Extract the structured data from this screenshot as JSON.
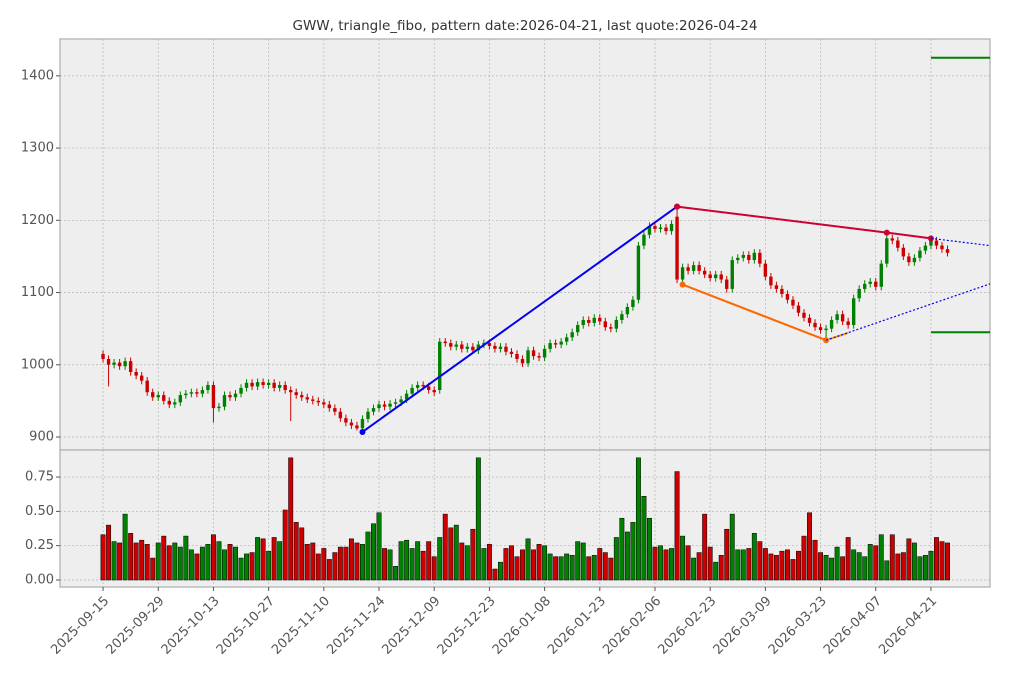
{
  "chart_data": {
    "type": "candlestick",
    "title": "GWW, triangle_fibo, pattern date:2026-04-21, last quote:2026-04-24",
    "categories": [
      "2025-09-15",
      null,
      null,
      null,
      null,
      null,
      null,
      null,
      null,
      null,
      "2025-09-29",
      null,
      null,
      null,
      null,
      null,
      null,
      null,
      null,
      null,
      "2025-10-13",
      null,
      null,
      null,
      null,
      null,
      null,
      null,
      null,
      null,
      "2025-10-27",
      null,
      null,
      null,
      null,
      null,
      null,
      null,
      null,
      null,
      "2025-11-10",
      null,
      null,
      null,
      null,
      null,
      null,
      null,
      null,
      null,
      "2025-11-24",
      null,
      null,
      null,
      null,
      null,
      null,
      null,
      null,
      null,
      "2025-12-09",
      null,
      null,
      null,
      null,
      null,
      null,
      null,
      null,
      null,
      "2025-12-23",
      null,
      null,
      null,
      null,
      null,
      null,
      null,
      null,
      null,
      "2026-01-08",
      null,
      null,
      null,
      null,
      null,
      null,
      null,
      null,
      null,
      "2026-01-23",
      null,
      null,
      null,
      null,
      null,
      null,
      null,
      null,
      null,
      "2026-02-06",
      null,
      null,
      null,
      null,
      null,
      null,
      null,
      null,
      null,
      "2026-02-23",
      null,
      null,
      null,
      null,
      null,
      null,
      null,
      null,
      null,
      "2026-03-09",
      null,
      null,
      null,
      null,
      null,
      null,
      null,
      null,
      null,
      "2026-03-23",
      null,
      null,
      null,
      null,
      null,
      null,
      null,
      null,
      null,
      "2026-04-07",
      null,
      null,
      null,
      null,
      null,
      null,
      null,
      null,
      null,
      "2026-04-21",
      null,
      null,
      null
    ],
    "open": [
      1015,
      1008,
      1000,
      1003,
      998,
      1005,
      990,
      985,
      978,
      962,
      955,
      958,
      950,
      945,
      948,
      958,
      960,
      962,
      960,
      965,
      972,
      940,
      942,
      958,
      955,
      960,
      968,
      975,
      970,
      976,
      972,
      975,
      968,
      972,
      965,
      962,
      958,
      955,
      952,
      950,
      948,
      945,
      940,
      935,
      926,
      920,
      916,
      912,
      925,
      935,
      940,
      945,
      942,
      946,
      948,
      952,
      960,
      968,
      972,
      970,
      965,
      965,
      1032,
      1030,
      1025,
      1028,
      1022,
      1025,
      1020,
      1028,
      1030,
      1026,
      1022,
      1025,
      1018,
      1015,
      1008,
      1002,
      1020,
      1012,
      1010,
      1022,
      1030,
      1028,
      1032,
      1038,
      1045,
      1055,
      1062,
      1058,
      1065,
      1060,
      1052,
      1050,
      1062,
      1070,
      1080,
      1090,
      1165,
      1180,
      1192,
      1188,
      1190,
      1185,
      1205,
      1118,
      1135,
      1130,
      1138,
      1130,
      1125,
      1120,
      1125,
      1118,
      1105,
      1145,
      1148,
      1152,
      1145,
      1155,
      1140,
      1122,
      1110,
      1105,
      1098,
      1090,
      1082,
      1072,
      1065,
      1058,
      1052,
      1048,
      1050,
      1062,
      1070,
      1060,
      1055,
      1092,
      1105,
      1112,
      1115,
      1108,
      1140,
      1175,
      1172,
      1162,
      1150,
      1142,
      1148,
      1158,
      1165,
      1172,
      1165,
      1160
    ],
    "high": [
      1020,
      1013,
      1008,
      1008,
      1010,
      1010,
      995,
      990,
      983,
      967,
      963,
      963,
      955,
      953,
      963,
      965,
      967,
      967,
      970,
      977,
      977,
      947,
      963,
      963,
      965,
      973,
      980,
      980,
      981,
      981,
      980,
      980,
      977,
      977,
      970,
      967,
      963,
      960,
      957,
      955,
      953,
      950,
      945,
      940,
      931,
      925,
      921,
      930,
      940,
      945,
      950,
      950,
      951,
      953,
      957,
      965,
      973,
      977,
      977,
      975,
      970,
      1037,
      1037,
      1035,
      1033,
      1033,
      1030,
      1030,
      1033,
      1035,
      1035,
      1031,
      1030,
      1030,
      1023,
      1020,
      1013,
      1025,
      1025,
      1017,
      1027,
      1035,
      1035,
      1037,
      1043,
      1050,
      1060,
      1067,
      1067,
      1070,
      1070,
      1065,
      1057,
      1067,
      1075,
      1085,
      1095,
      1170,
      1185,
      1197,
      1197,
      1195,
      1195,
      1200,
      1219,
      1140,
      1140,
      1143,
      1143,
      1135,
      1130,
      1130,
      1130,
      1123,
      1150,
      1153,
      1157,
      1157,
      1160,
      1160,
      1145,
      1127,
      1115,
      1110,
      1103,
      1095,
      1087,
      1077,
      1070,
      1063,
      1057,
      1055,
      1067,
      1075,
      1075,
      1065,
      1097,
      1110,
      1117,
      1120,
      1120,
      1145,
      1183,
      1180,
      1177,
      1167,
      1155,
      1153,
      1163,
      1170,
      1177,
      1177,
      1170,
      1165
    ],
    "low": [
      1003,
      970,
      995,
      993,
      993,
      985,
      980,
      973,
      957,
      950,
      950,
      945,
      940,
      940,
      943,
      953,
      955,
      955,
      955,
      960,
      920,
      935,
      937,
      950,
      950,
      955,
      963,
      965,
      965,
      967,
      967,
      963,
      963,
      960,
      922,
      953,
      950,
      947,
      945,
      943,
      940,
      935,
      930,
      921,
      915,
      911,
      909,
      907,
      920,
      930,
      935,
      937,
      937,
      941,
      943,
      947,
      955,
      963,
      965,
      960,
      957,
      960,
      1025,
      1020,
      1020,
      1017,
      1017,
      1015,
      1015,
      1023,
      1021,
      1017,
      1017,
      1013,
      1010,
      1003,
      997,
      997,
      1007,
      1005,
      1005,
      1017,
      1023,
      1023,
      1027,
      1033,
      1040,
      1050,
      1053,
      1053,
      1055,
      1047,
      1045,
      1045,
      1057,
      1065,
      1075,
      1085,
      1160,
      1175,
      1183,
      1183,
      1180,
      1180,
      1113,
      1111,
      1125,
      1125,
      1125,
      1120,
      1115,
      1115,
      1113,
      1100,
      1100,
      1140,
      1143,
      1140,
      1140,
      1135,
      1117,
      1105,
      1100,
      1093,
      1085,
      1077,
      1067,
      1060,
      1053,
      1047,
      1043,
      1034,
      1045,
      1057,
      1055,
      1050,
      1050,
      1087,
      1100,
      1107,
      1103,
      1103,
      1135,
      1167,
      1157,
      1145,
      1137,
      1137,
      1143,
      1153,
      1160,
      1160,
      1155,
      1150
    ],
    "close": [
      1008,
      1000,
      1003,
      998,
      1005,
      990,
      985,
      978,
      962,
      955,
      958,
      950,
      945,
      948,
      958,
      960,
      962,
      960,
      965,
      972,
      940,
      942,
      958,
      955,
      960,
      968,
      975,
      970,
      976,
      972,
      975,
      968,
      972,
      965,
      962,
      958,
      955,
      952,
      950,
      948,
      945,
      940,
      935,
      926,
      920,
      916,
      912,
      925,
      935,
      940,
      945,
      942,
      946,
      948,
      952,
      960,
      968,
      972,
      970,
      965,
      962,
      1032,
      1030,
      1025,
      1028,
      1022,
      1025,
      1020,
      1028,
      1030,
      1026,
      1022,
      1025,
      1018,
      1015,
      1008,
      1002,
      1020,
      1012,
      1010,
      1022,
      1030,
      1028,
      1032,
      1038,
      1045,
      1055,
      1062,
      1058,
      1065,
      1060,
      1052,
      1050,
      1062,
      1070,
      1080,
      1090,
      1165,
      1180,
      1192,
      1188,
      1190,
      1185,
      1195,
      1118,
      1135,
      1130,
      1138,
      1130,
      1125,
      1120,
      1125,
      1118,
      1105,
      1145,
      1148,
      1152,
      1145,
      1155,
      1140,
      1122,
      1110,
      1105,
      1098,
      1090,
      1082,
      1072,
      1065,
      1058,
      1052,
      1048,
      1050,
      1062,
      1070,
      1060,
      1055,
      1092,
      1105,
      1112,
      1115,
      1108,
      1140,
      1175,
      1172,
      1162,
      1150,
      1142,
      1148,
      1158,
      1165,
      1172,
      1165,
      1160,
      1155
    ],
    "up_color": "#008000",
    "down_color": "#cc0000",
    "xlim": [
      -7.8,
      160.7
    ],
    "ylim": [
      882,
      1451
    ],
    "yticks": [
      900,
      1000,
      1100,
      1200,
      1300,
      1400
    ],
    "grid": true,
    "lines": [
      {
        "x": [
          47,
          104
        ],
        "values": [
          907,
          1219
        ],
        "color": "#0000ee",
        "style": "solid",
        "markers": true
      },
      {
        "x": [
          104,
          142,
          150
        ],
        "values": [
          1219,
          1183,
          1175
        ],
        "color": "#cc0033",
        "style": "solid",
        "markers": true
      },
      {
        "x": [
          105,
          131
        ],
        "values": [
          1111,
          1034
        ],
        "color": "#ff6600",
        "style": "solid",
        "markers": true
      },
      {
        "x": [
          131,
          135
        ],
        "values": [
          1034,
          1044
        ],
        "color": "#ff9900",
        "style": "solid",
        "markers": false
      },
      {
        "x": [
          131,
          160.7
        ],
        "values": [
          1034,
          1112
        ],
        "color": "#0000ee",
        "style": "dotted",
        "markers": false
      },
      {
        "x": [
          150,
          160.7
        ],
        "values": [
          1175,
          1165
        ],
        "color": "#0000ee",
        "style": "dotted",
        "markers": false
      },
      {
        "x": [
          150,
          160.7
        ],
        "values": [
          1425,
          1425
        ],
        "color": "#008000",
        "style": "solid",
        "markers": false
      },
      {
        "x": [
          150,
          160.7
        ],
        "values": [
          1045,
          1045
        ],
        "color": "#008000",
        "style": "solid",
        "markers": false
      }
    ],
    "volume": {
      "values": [
        0.33,
        0.4,
        0.28,
        0.27,
        0.48,
        0.34,
        0.27,
        0.29,
        0.26,
        0.16,
        0.27,
        0.32,
        0.25,
        0.27,
        0.24,
        0.32,
        0.22,
        0.19,
        0.24,
        0.26,
        0.33,
        0.28,
        0.22,
        0.26,
        0.24,
        0.16,
        0.19,
        0.2,
        0.31,
        0.3,
        0.21,
        0.31,
        0.28,
        0.51,
        0.89,
        0.42,
        0.38,
        0.26,
        0.27,
        0.19,
        0.23,
        0.15,
        0.2,
        0.24,
        0.24,
        0.3,
        0.27,
        0.26,
        0.35,
        0.41,
        0.49,
        0.23,
        0.22,
        0.1,
        0.28,
        0.29,
        0.23,
        0.28,
        0.21,
        0.28,
        0.17,
        0.31,
        0.48,
        0.38,
        0.4,
        0.27,
        0.25,
        0.37,
        0.89,
        0.23,
        0.26,
        0.08,
        0.13,
        0.23,
        0.25,
        0.17,
        0.22,
        0.3,
        0.22,
        0.26,
        0.25,
        0.19,
        0.17,
        0.17,
        0.19,
        0.18,
        0.28,
        0.27,
        0.17,
        0.18,
        0.23,
        0.2,
        0.16,
        0.31,
        0.45,
        0.35,
        0.42,
        0.89,
        0.61,
        0.45,
        0.24,
        0.25,
        0.22,
        0.23,
        0.79,
        0.32,
        0.25,
        0.16,
        0.2,
        0.48,
        0.24,
        0.13,
        0.18,
        0.37,
        0.48,
        0.22,
        0.22,
        0.23,
        0.34,
        0.28,
        0.23,
        0.19,
        0.18,
        0.21,
        0.22,
        0.15,
        0.21,
        0.32,
        0.49,
        0.29,
        0.2,
        0.18,
        0.16,
        0.24,
        0.17,
        0.31,
        0.22,
        0.2,
        0.17,
        0.26,
        0.25,
        0.33,
        0.14,
        0.33,
        0.19,
        0.2,
        0.3,
        0.27,
        0.17,
        0.18,
        0.21,
        0.31,
        0.28,
        0.27
      ],
      "ylim": [
        -0.051,
        0.947
      ],
      "yticks": [
        {
          "value": 0,
          "label": "0.00"
        },
        {
          "value": 0.25,
          "label": "0.25"
        },
        {
          "value": 0.5,
          "label": "0.50"
        },
        {
          "value": 0.75,
          "label": "0.75"
        }
      ]
    }
  }
}
